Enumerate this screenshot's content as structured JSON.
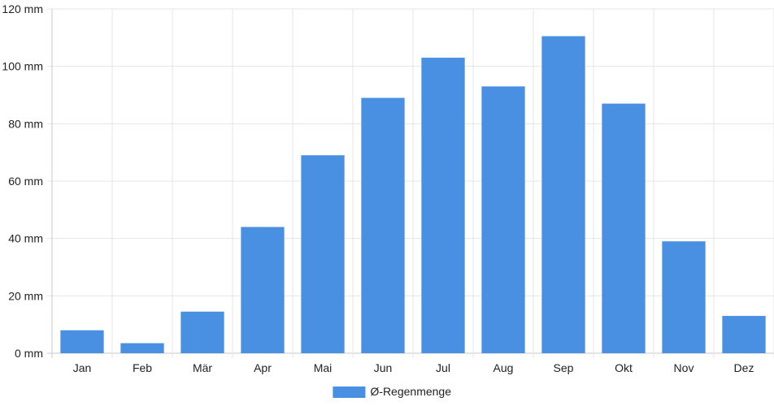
{
  "chart_data": {
    "type": "bar",
    "categories": [
      "Jan",
      "Feb",
      "Mär",
      "Apr",
      "Mai",
      "Jun",
      "Jul",
      "Aug",
      "Sep",
      "Okt",
      "Nov",
      "Dez"
    ],
    "series": [
      {
        "name": "Ø-Regenmenge",
        "values": [
          8,
          3.5,
          14.5,
          44,
          69,
          89,
          103,
          93,
          110.5,
          87,
          39,
          13
        ]
      }
    ],
    "ylim": [
      0,
      120
    ],
    "yticks": [
      0,
      20,
      40,
      60,
      80,
      100,
      120
    ],
    "ytick_labels": [
      "0 mm",
      "20 mm",
      "40 mm",
      "60 mm",
      "80 mm",
      "100 mm",
      "120 mm"
    ],
    "grid": true,
    "legend": "bottom",
    "colors": {
      "bar": "#4a90e2",
      "grid": "#e5e5e5",
      "axis": "#c8c8c8"
    }
  }
}
